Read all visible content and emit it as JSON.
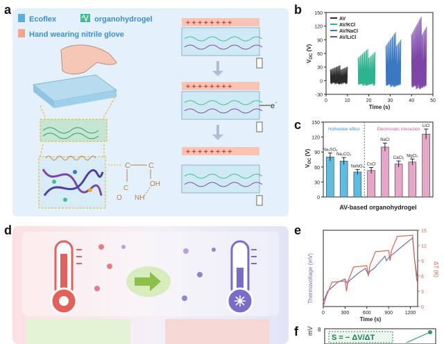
{
  "figure": {
    "panel_labels": {
      "a": "a",
      "b": "b",
      "c": "c",
      "d": "d",
      "e": "e",
      "f": "f"
    },
    "panel_a": {
      "legend_ecoflex": "Ecoflex",
      "legend_gel_icon_text": "",
      "legend_organohydrogel": "organohydrogel",
      "legend_glove": "Hand wearing nitrile glove",
      "electron_label": "e",
      "electron_sup": "-",
      "oh_label": "OH",
      "nh_label": "NH",
      "o_label": "O",
      "c_label": "C",
      "colors": {
        "legend_ecoflex": "#5aaee0",
        "legend_gel": "#3fbf8f",
        "legend_glove": "#f4a58c",
        "plus": "#e03030",
        "minus": "#3060c0",
        "background": "#e6f2fb"
      }
    },
    "panel_e_axes": {
      "x_title": "Time (s)",
      "y_left_title": "Thermovoltage (mV)",
      "y_right_title": "ΔT (K)",
      "y_right_ticks": [
        "0",
        "3",
        "6",
        "9",
        "12",
        "15"
      ]
    },
    "panel_f": {
      "y_title": "mV",
      "tick_top": "8",
      "formula": "S = − ΔV/ΔT",
      "formula_sub": "t"
    }
  },
  "chart_data": [
    {
      "id": "b",
      "type": "line",
      "xlabel": "Time (s)",
      "ylabel": "V",
      "ylabel_sub": "OC",
      "ylabel_unit": " (V)",
      "xlim": [
        0,
        50
      ],
      "ylim": [
        -30,
        150
      ],
      "x_ticks": [
        0,
        10,
        20,
        30,
        40,
        50
      ],
      "y_ticks": [
        -30,
        0,
        30,
        60,
        90,
        120,
        150
      ],
      "legend_position": "top-left",
      "series": [
        {
          "name": "AV",
          "color": "#2a2a2a",
          "x_range": [
            2,
            10
          ],
          "peak": 35,
          "trough": -8
        },
        {
          "name": "AV/KCl",
          "color": "#2db38f",
          "x_range": [
            15,
            23
          ],
          "peak": 72,
          "trough": -12
        },
        {
          "name": "AV/NaCl",
          "color": "#3a78c2",
          "x_range": [
            28,
            35
          ],
          "peak": 110,
          "trough": -15
        },
        {
          "name": "AV/LiCl",
          "color": "#7d45a8",
          "x_range": [
            40,
            47
          ],
          "peak": 145,
          "trough": -20
        }
      ]
    },
    {
      "id": "c",
      "type": "bar",
      "xlabel": "AV-based organohydrogel",
      "ylabel": "V",
      "ylabel_sub": "OC",
      "ylabel_unit": " (V)",
      "ylim": [
        0,
        150
      ],
      "y_ticks": [
        0,
        30,
        60,
        90,
        120,
        150
      ],
      "group_labels": [
        "Hofmeister effect",
        "Electrostatic interaction"
      ],
      "bars": [
        {
          "label": "Na2SO4",
          "value": 80,
          "err": 8,
          "color": "#5bbde4"
        },
        {
          "label": "Na2CO3",
          "value": 72,
          "err": 7,
          "color": "#5bbde4"
        },
        {
          "label": "NaNO3",
          "value": 50,
          "err": 5,
          "color": "#5bbde4"
        },
        {
          "label": "CsCl",
          "value": 53,
          "err": 6,
          "color": "#e6a6c8"
        },
        {
          "label": "NaCl",
          "value": 100,
          "err": 8,
          "color": "#e6a6c8"
        },
        {
          "label": "CaCl2",
          "value": 66,
          "err": 6,
          "color": "#e6a6c8"
        },
        {
          "label": "MgCl2",
          "value": 70,
          "err": 6,
          "color": "#e6a6c8"
        },
        {
          "label": "LiCl",
          "value": 126,
          "err": 10,
          "color": "#e6a6c8"
        }
      ],
      "bar_labels_display": [
        "Na₂SO₄",
        "Na₂CO₃",
        "NaNO₃",
        "CsCl",
        "NaCl",
        "CaCl₂",
        "MgCl₂",
        "LiCl"
      ]
    },
    {
      "id": "e",
      "type": "line",
      "xlabel": "Time (s)",
      "ylabel_left": "Thermovoltage (mV)",
      "ylabel_right": "ΔT (K)",
      "xlim": [
        0,
        1300
      ],
      "x_ticks": [
        0,
        300,
        600,
        900,
        1200
      ],
      "y_right_lim": [
        0,
        15
      ],
      "y_right_ticks": [
        0,
        3,
        6,
        9,
        12,
        15
      ],
      "series": [
        {
          "name": "thermovoltage",
          "color": "#6b6fc0",
          "x": [
            0,
            60,
            200,
            300,
            330,
            360,
            500,
            580,
            620,
            640,
            700,
            850,
            870,
            900,
            1100,
            1230,
            1260,
            1290
          ],
          "y_frac": [
            0.06,
            0.2,
            0.32,
            0.36,
            0.3,
            0.34,
            0.45,
            0.5,
            0.42,
            0.46,
            0.5,
            0.66,
            0.6,
            0.64,
            0.8,
            0.9,
            0.6,
            0.4
          ]
        },
        {
          "name": "ΔT",
          "color": "#e0604a",
          "x": [
            0,
            40,
            120,
            300,
            320,
            340,
            420,
            600,
            620,
            640,
            720,
            900,
            920,
            940,
            1020,
            1230,
            1260,
            1290
          ],
          "y": [
            0,
            2,
            4.8,
            5,
            3,
            5,
            7.8,
            8,
            6,
            8,
            10.8,
            11,
            9,
            11,
            13.8,
            14,
            9,
            5
          ]
        }
      ]
    }
  ]
}
